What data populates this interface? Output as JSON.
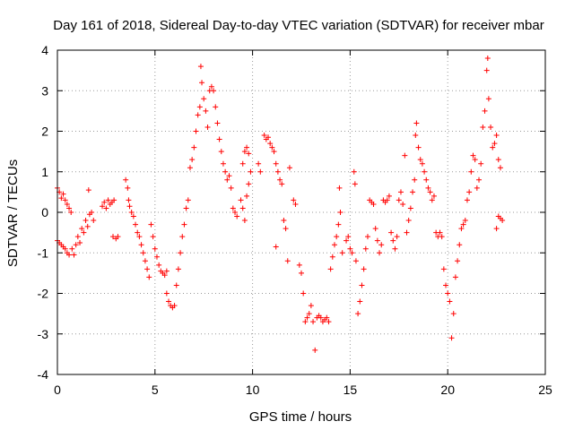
{
  "chart_data": {
    "type": "scatter",
    "title": "Day 161 of 2018, Sidereal Day-to-day VTEC variation (SDTVAR) for receiver mbar",
    "xlabel": "GPS time / hours",
    "ylabel": "SDTVAR / TECUs",
    "xlim": [
      0,
      25
    ],
    "ylim": [
      -4,
      4
    ],
    "x_ticks": [
      0,
      5,
      10,
      15,
      20,
      25
    ],
    "y_ticks": [
      -4,
      -3,
      -2,
      -1,
      0,
      1,
      2,
      3,
      4
    ],
    "grid": true,
    "marker": "+",
    "color": "#ff0000",
    "series": [
      {
        "name": "SDTVAR",
        "points": [
          [
            0.0,
            0.6
          ],
          [
            0.1,
            0.5
          ],
          [
            0.2,
            0.35
          ],
          [
            0.3,
            0.45
          ],
          [
            0.4,
            0.3
          ],
          [
            0.5,
            0.2
          ],
          [
            0.6,
            0.1
          ],
          [
            0.7,
            0.0
          ],
          [
            0.0,
            -0.7
          ],
          [
            0.1,
            -0.75
          ],
          [
            0.2,
            -0.8
          ],
          [
            0.3,
            -0.85
          ],
          [
            0.4,
            -0.9
          ],
          [
            0.5,
            -1.0
          ],
          [
            0.6,
            -1.05
          ],
          [
            0.75,
            -0.9
          ],
          [
            0.85,
            -1.05
          ],
          [
            0.95,
            -0.8
          ],
          [
            1.05,
            -0.6
          ],
          [
            1.15,
            -0.75
          ],
          [
            1.25,
            -0.4
          ],
          [
            1.35,
            -0.5
          ],
          [
            1.45,
            -0.2
          ],
          [
            1.55,
            -0.35
          ],
          [
            1.65,
            -0.05
          ],
          [
            1.75,
            0.0
          ],
          [
            1.85,
            -0.2
          ],
          [
            1.6,
            0.55
          ],
          [
            2.3,
            0.15
          ],
          [
            2.4,
            0.25
          ],
          [
            2.5,
            0.1
          ],
          [
            2.6,
            0.3
          ],
          [
            2.7,
            0.2
          ],
          [
            2.8,
            0.25
          ],
          [
            2.9,
            0.3
          ],
          [
            2.85,
            -0.6
          ],
          [
            3.0,
            -0.65
          ],
          [
            3.1,
            -0.6
          ],
          [
            3.5,
            0.8
          ],
          [
            3.6,
            0.6
          ],
          [
            3.65,
            0.3
          ],
          [
            3.7,
            0.15
          ],
          [
            3.8,
            0.0
          ],
          [
            3.9,
            -0.1
          ],
          [
            4.0,
            -0.3
          ],
          [
            4.1,
            -0.5
          ],
          [
            4.2,
            -0.6
          ],
          [
            4.3,
            -0.8
          ],
          [
            4.4,
            -1.0
          ],
          [
            4.5,
            -1.2
          ],
          [
            4.6,
            -1.4
          ],
          [
            4.7,
            -1.6
          ],
          [
            4.8,
            -0.3
          ],
          [
            4.9,
            -0.6
          ],
          [
            5.0,
            -0.9
          ],
          [
            5.1,
            -1.1
          ],
          [
            5.2,
            -1.3
          ],
          [
            5.3,
            -1.45
          ],
          [
            5.4,
            -1.5
          ],
          [
            5.5,
            -1.55
          ],
          [
            5.6,
            -1.45
          ],
          [
            5.6,
            -2.0
          ],
          [
            5.7,
            -2.2
          ],
          [
            5.8,
            -2.3
          ],
          [
            5.9,
            -2.35
          ],
          [
            6.0,
            -2.3
          ],
          [
            6.1,
            -1.8
          ],
          [
            6.2,
            -1.4
          ],
          [
            6.3,
            -1.0
          ],
          [
            6.4,
            -0.6
          ],
          [
            6.5,
            -0.3
          ],
          [
            6.6,
            0.1
          ],
          [
            6.7,
            0.3
          ],
          [
            6.8,
            1.1
          ],
          [
            6.9,
            1.3
          ],
          [
            7.0,
            1.6
          ],
          [
            7.1,
            2.0
          ],
          [
            7.2,
            2.4
          ],
          [
            7.3,
            2.6
          ],
          [
            7.35,
            3.6
          ],
          [
            7.4,
            3.2
          ],
          [
            7.5,
            2.8
          ],
          [
            7.6,
            2.5
          ],
          [
            7.7,
            2.1
          ],
          [
            7.8,
            3.0
          ],
          [
            7.9,
            3.1
          ],
          [
            8.0,
            3.0
          ],
          [
            8.1,
            2.6
          ],
          [
            8.2,
            2.2
          ],
          [
            8.3,
            1.8
          ],
          [
            8.4,
            1.5
          ],
          [
            8.5,
            1.2
          ],
          [
            8.6,
            1.0
          ],
          [
            8.7,
            0.8
          ],
          [
            8.8,
            0.9
          ],
          [
            8.9,
            0.6
          ],
          [
            9.0,
            0.1
          ],
          [
            9.1,
            0.0
          ],
          [
            9.2,
            -0.1
          ],
          [
            9.4,
            0.3
          ],
          [
            9.5,
            0.1
          ],
          [
            9.6,
            -0.2
          ],
          [
            9.7,
            0.4
          ],
          [
            9.8,
            0.7
          ],
          [
            9.9,
            1.0
          ],
          [
            9.5,
            1.2
          ],
          [
            9.6,
            1.5
          ],
          [
            9.7,
            1.6
          ],
          [
            9.8,
            1.45
          ],
          [
            10.3,
            1.2
          ],
          [
            10.4,
            1.0
          ],
          [
            10.6,
            1.9
          ],
          [
            10.7,
            1.8
          ],
          [
            10.8,
            1.85
          ],
          [
            10.9,
            1.7
          ],
          [
            11.0,
            1.6
          ],
          [
            11.1,
            1.5
          ],
          [
            11.2,
            1.2
          ],
          [
            11.3,
            1.0
          ],
          [
            11.4,
            0.8
          ],
          [
            11.5,
            0.7
          ],
          [
            11.2,
            -0.85
          ],
          [
            11.6,
            -0.2
          ],
          [
            11.7,
            -0.4
          ],
          [
            11.8,
            -1.2
          ],
          [
            11.9,
            1.1
          ],
          [
            12.1,
            0.3
          ],
          [
            12.2,
            0.2
          ],
          [
            12.4,
            -1.3
          ],
          [
            12.5,
            -1.5
          ],
          [
            12.6,
            -2.0
          ],
          [
            12.7,
            -2.7
          ],
          [
            12.8,
            -2.6
          ],
          [
            12.9,
            -2.5
          ],
          [
            13.0,
            -2.3
          ],
          [
            13.1,
            -2.7
          ],
          [
            13.2,
            -3.4
          ],
          [
            13.3,
            -2.6
          ],
          [
            13.4,
            -2.55
          ],
          [
            13.5,
            -2.6
          ],
          [
            13.6,
            -2.7
          ],
          [
            13.7,
            -2.65
          ],
          [
            13.8,
            -2.6
          ],
          [
            13.9,
            -2.7
          ],
          [
            14.0,
            -1.4
          ],
          [
            14.1,
            -1.1
          ],
          [
            14.2,
            -0.8
          ],
          [
            14.3,
            -0.6
          ],
          [
            14.4,
            -0.3
          ],
          [
            14.5,
            0.0
          ],
          [
            14.45,
            0.6
          ],
          [
            14.6,
            -1.0
          ],
          [
            14.8,
            -0.7
          ],
          [
            14.9,
            -0.6
          ],
          [
            15.0,
            -0.9
          ],
          [
            15.1,
            -1.0
          ],
          [
            15.2,
            1.0
          ],
          [
            15.25,
            0.7
          ],
          [
            15.3,
            -1.2
          ],
          [
            15.4,
            -2.5
          ],
          [
            15.5,
            -2.2
          ],
          [
            15.6,
            -1.8
          ],
          [
            15.7,
            -1.4
          ],
          [
            15.8,
            -0.9
          ],
          [
            15.9,
            -0.6
          ],
          [
            16.0,
            0.3
          ],
          [
            16.1,
            0.25
          ],
          [
            16.2,
            0.2
          ],
          [
            16.3,
            -0.4
          ],
          [
            16.4,
            -0.7
          ],
          [
            16.5,
            -1.0
          ],
          [
            16.6,
            -0.8
          ],
          [
            16.7,
            0.3
          ],
          [
            16.8,
            0.25
          ],
          [
            16.9,
            0.3
          ],
          [
            17.0,
            0.4
          ],
          [
            17.1,
            -0.5
          ],
          [
            17.2,
            -0.7
          ],
          [
            17.3,
            -0.9
          ],
          [
            17.4,
            -0.6
          ],
          [
            17.5,
            0.3
          ],
          [
            17.6,
            0.5
          ],
          [
            17.7,
            0.2
          ],
          [
            17.8,
            1.4
          ],
          [
            17.9,
            -0.5
          ],
          [
            18.0,
            -0.2
          ],
          [
            18.1,
            0.1
          ],
          [
            18.2,
            0.5
          ],
          [
            18.3,
            0.8
          ],
          [
            18.35,
            1.9
          ],
          [
            18.4,
            2.2
          ],
          [
            18.5,
            1.6
          ],
          [
            18.6,
            1.3
          ],
          [
            18.7,
            1.2
          ],
          [
            18.8,
            1.0
          ],
          [
            18.9,
            0.8
          ],
          [
            19.0,
            0.6
          ],
          [
            19.1,
            0.5
          ],
          [
            19.2,
            0.3
          ],
          [
            19.3,
            0.4
          ],
          [
            19.4,
            -0.5
          ],
          [
            19.5,
            -0.6
          ],
          [
            19.6,
            -0.5
          ],
          [
            19.7,
            -0.6
          ],
          [
            19.8,
            -1.4
          ],
          [
            19.9,
            -1.8
          ],
          [
            20.0,
            -2.0
          ],
          [
            20.1,
            -2.2
          ],
          [
            20.2,
            -3.1
          ],
          [
            20.3,
            -2.5
          ],
          [
            20.4,
            -1.6
          ],
          [
            20.5,
            -1.2
          ],
          [
            20.6,
            -0.8
          ],
          [
            20.7,
            -0.4
          ],
          [
            20.8,
            -0.3
          ],
          [
            20.9,
            -0.2
          ],
          [
            21.0,
            0.3
          ],
          [
            21.1,
            0.5
          ],
          [
            21.2,
            1.0
          ],
          [
            21.3,
            1.4
          ],
          [
            21.4,
            1.3
          ],
          [
            21.5,
            0.6
          ],
          [
            21.6,
            0.8
          ],
          [
            21.7,
            1.2
          ],
          [
            21.8,
            2.1
          ],
          [
            21.9,
            2.5
          ],
          [
            22.0,
            3.5
          ],
          [
            22.05,
            3.8
          ],
          [
            22.1,
            2.8
          ],
          [
            22.2,
            2.1
          ],
          [
            22.3,
            1.6
          ],
          [
            22.4,
            1.7
          ],
          [
            22.5,
            1.9
          ],
          [
            22.6,
            1.3
          ],
          [
            22.7,
            1.1
          ],
          [
            22.5,
            -0.4
          ],
          [
            22.6,
            -0.1
          ],
          [
            22.7,
            -0.15
          ],
          [
            22.8,
            -0.2
          ]
        ]
      }
    ]
  }
}
